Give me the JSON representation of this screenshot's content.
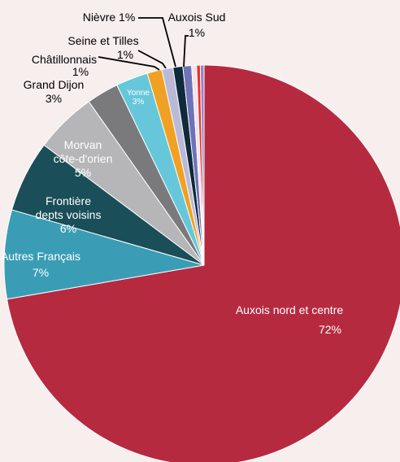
{
  "chart_data": {
    "type": "pie",
    "title": "",
    "start_angle_deg": 0,
    "direction": "clockwise",
    "slices": [
      {
        "label_lines": [
          "Auxois nord et centre"
        ],
        "pct_text": "72%",
        "value": 72.5,
        "color": "#b62a40",
        "label_color": "#ffffff"
      },
      {
        "label_lines": [
          "Autres Français"
        ],
        "pct_text": "7%",
        "value": 7.2,
        "color": "#3a9db5",
        "label_color": "#ffffff"
      },
      {
        "label_lines": [
          "Frontière",
          "depts voisins"
        ],
        "pct_text": "6%",
        "value": 5.8,
        "color": "#1a4e58",
        "label_color": "#ffffff"
      },
      {
        "label_lines": [
          "Morvan",
          "côte-d'orien"
        ],
        "pct_text": "5%",
        "value": 5.0,
        "color": "#b6b6b8",
        "label_color": "#ffffff"
      },
      {
        "label_lines": [
          "Grand Dijon"
        ],
        "pct_text": "3%",
        "value": 2.6,
        "color": "#7a7a7c",
        "label_color": "#000000"
      },
      {
        "label_lines": [
          "Yonne"
        ],
        "pct_text": "3%",
        "value": 2.6,
        "color": "#66c7da",
        "label_color": "#ffffff"
      },
      {
        "label_lines": [
          "Châtillonnais"
        ],
        "pct_text": "1%",
        "value": 1.2,
        "color": "#f0a023",
        "label_color": "#000000"
      },
      {
        "label_lines": [
          "Seine et Tilles"
        ],
        "pct_text": "1%",
        "value": 0.9,
        "color": "#b9b9d8",
        "label_color": "#000000"
      },
      {
        "label_lines": [
          "Nièvre"
        ],
        "pct_text": "1%",
        "value": 0.8,
        "color": "#0f2a3a",
        "label_color": "#000000"
      },
      {
        "label_lines": [
          "Auxois Sud"
        ],
        "pct_text": "1%",
        "value": 0.7,
        "color": "#6e72b8",
        "label_color": "#000000"
      },
      {
        "label_lines": [],
        "pct_text": "",
        "value": 0.4,
        "color": "#f2e3e6",
        "label_color": "#000000"
      },
      {
        "label_lines": [],
        "pct_text": "",
        "value": 0.3,
        "color": "#e8312d",
        "label_color": "#000000"
      },
      {
        "label_lines": [],
        "pct_text": "",
        "value": 0.3,
        "color": "#9d83c4",
        "label_color": "#000000"
      }
    ]
  }
}
